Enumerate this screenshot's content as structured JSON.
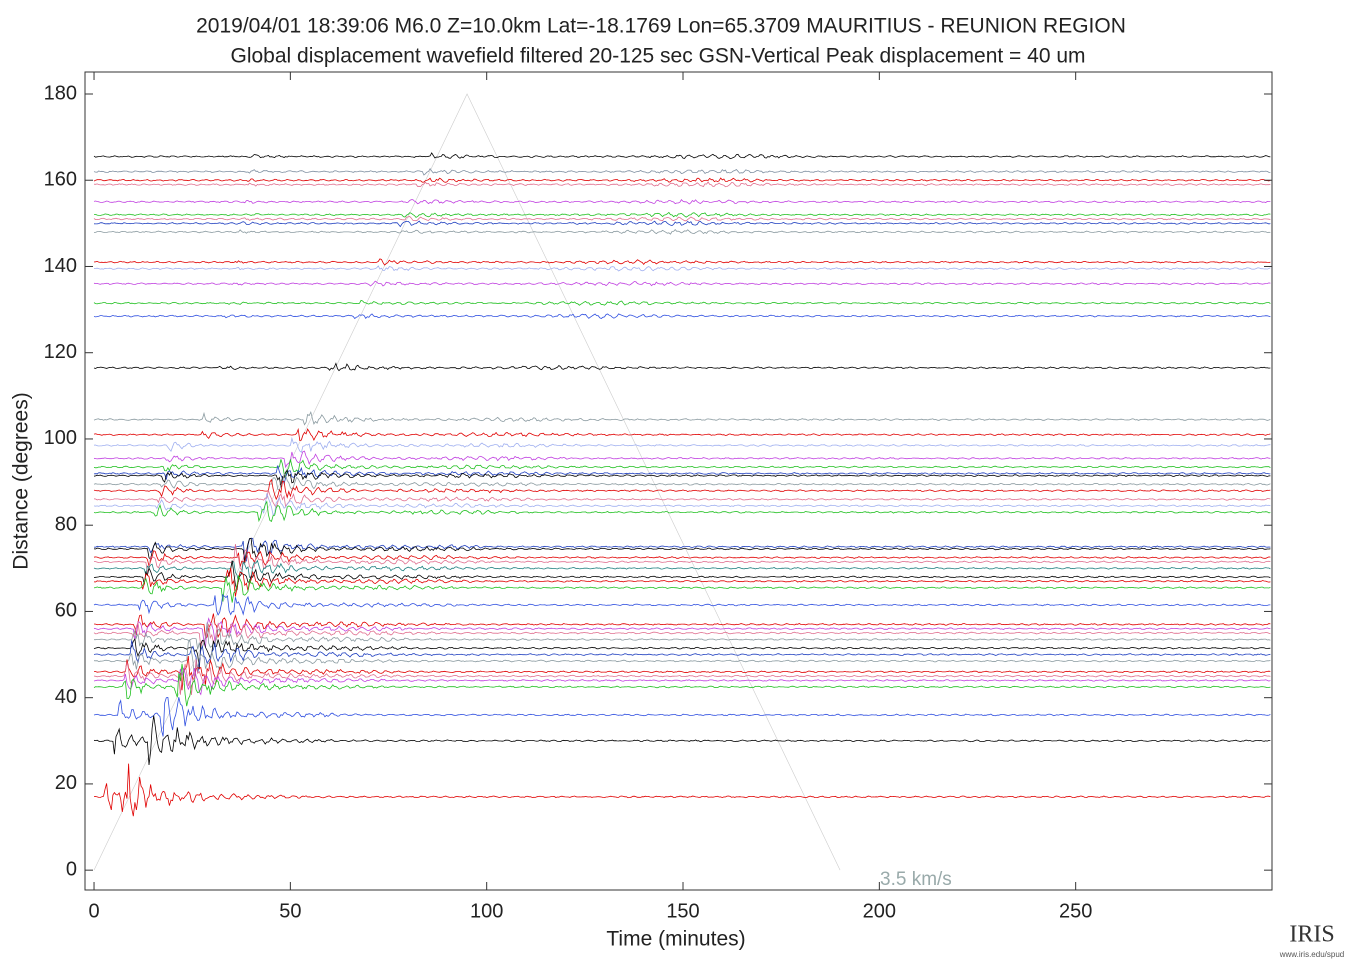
{
  "chart_data": {
    "type": "record_section",
    "title": "2019/04/01  18:39:06  M6.0  Z=10.0km  Lat=-18.1769 Lon=65.3709  MAURITIUS - REUNION REGION",
    "subtitle": "Global displacement wavefield     filtered 20-125 sec    GSN-Vertical    Peak displacement =  40 um",
    "xlabel": "Time (minutes)",
    "ylabel": "Distance (degrees)",
    "xlim": [
      -2.3,
      300
    ],
    "ylim": [
      -4.6,
      185.1
    ],
    "xticks": [
      0,
      50,
      100,
      150,
      200,
      250
    ],
    "yticks": [
      0,
      20,
      40,
      60,
      80,
      100,
      120,
      140,
      160,
      180
    ],
    "annotation": "3.5 km/s",
    "traces": [
      {
        "distance": 165.5,
        "color": "#000000"
      },
      {
        "distance": 162,
        "color": "#7f8fa0"
      },
      {
        "distance": 160,
        "color": "#e00000"
      },
      {
        "distance": 159,
        "color": "#e07090"
      },
      {
        "distance": 155,
        "color": "#c040e0"
      },
      {
        "distance": 152,
        "color": "#20c020"
      },
      {
        "distance": 151,
        "color": "#e07090"
      },
      {
        "distance": 150,
        "color": "#2040c0"
      },
      {
        "distance": 148,
        "color": "#8a9aa0"
      },
      {
        "distance": 141,
        "color": "#e00000"
      },
      {
        "distance": 139.5,
        "color": "#a0b0f0"
      },
      {
        "distance": 136,
        "color": "#c040e0"
      },
      {
        "distance": 131.5,
        "color": "#20c020"
      },
      {
        "distance": 128.5,
        "color": "#3050e0"
      },
      {
        "distance": 116.5,
        "color": "#000000"
      },
      {
        "distance": 104.5,
        "color": "#8a9aa0"
      },
      {
        "distance": 101,
        "color": "#e00000"
      },
      {
        "distance": 98.5,
        "color": "#a0b0f0"
      },
      {
        "distance": 95.5,
        "color": "#c040e0"
      },
      {
        "distance": 93.5,
        "color": "#20c020"
      },
      {
        "distance": 92,
        "color": "#2040c0"
      },
      {
        "distance": 91.5,
        "color": "#000000"
      },
      {
        "distance": 89.5,
        "color": "#8a9aa0"
      },
      {
        "distance": 88,
        "color": "#e00000"
      },
      {
        "distance": 86,
        "color": "#e07090"
      },
      {
        "distance": 84.5,
        "color": "#a0b0f0"
      },
      {
        "distance": 83,
        "color": "#20c020"
      },
      {
        "distance": 75,
        "color": "#2040c0"
      },
      {
        "distance": 74.5,
        "color": "#000000"
      },
      {
        "distance": 72.5,
        "color": "#e00000"
      },
      {
        "distance": 71.5,
        "color": "#e07090"
      },
      {
        "distance": 70,
        "color": "#208080"
      },
      {
        "distance": 68,
        "color": "#000000"
      },
      {
        "distance": 67,
        "color": "#e00000"
      },
      {
        "distance": 65.5,
        "color": "#20c020"
      },
      {
        "distance": 61.5,
        "color": "#3050e0"
      },
      {
        "distance": 57,
        "color": "#e00000"
      },
      {
        "distance": 56,
        "color": "#c040e0"
      },
      {
        "distance": 55,
        "color": "#e07090"
      },
      {
        "distance": 53.5,
        "color": "#8a9aa0"
      },
      {
        "distance": 51.5,
        "color": "#000000"
      },
      {
        "distance": 50,
        "color": "#2040c0"
      },
      {
        "distance": 48.5,
        "color": "#8a9aa0"
      },
      {
        "distance": 46,
        "color": "#e00000"
      },
      {
        "distance": 45,
        "color": "#e07090"
      },
      {
        "distance": 44,
        "color": "#c040e0"
      },
      {
        "distance": 42.5,
        "color": "#20c020"
      },
      {
        "distance": 36,
        "color": "#3050e0"
      },
      {
        "distance": 30,
        "color": "#000000"
      },
      {
        "distance": 17,
        "color": "#e00000"
      }
    ]
  },
  "logo": {
    "name": "IRIS",
    "url": "www.iris.edu/spud"
  }
}
